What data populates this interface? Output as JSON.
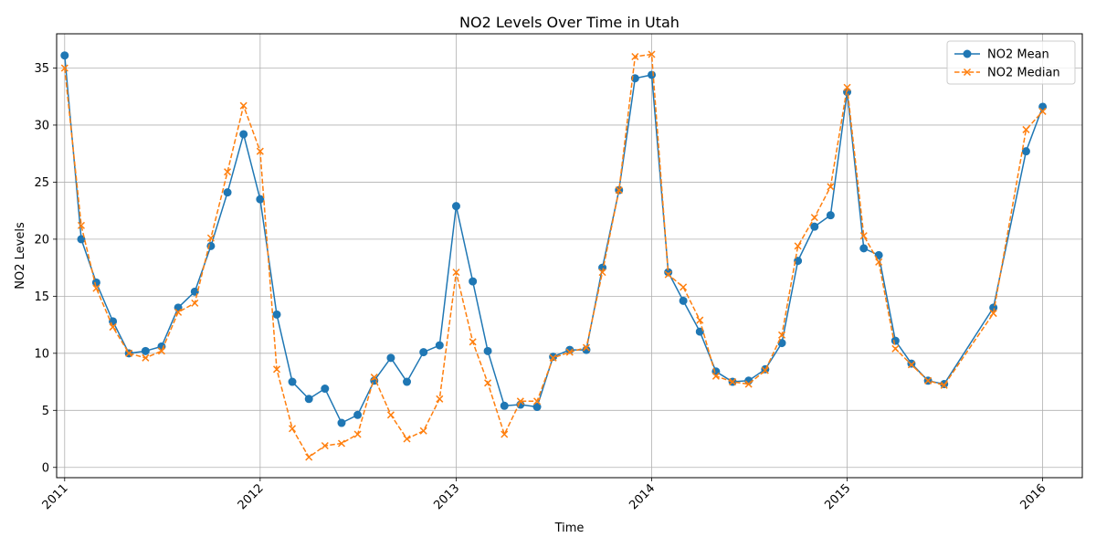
{
  "chart_data": {
    "type": "line",
    "title": "NO2 Levels Over Time in Utah",
    "xlabel": "Time",
    "ylabel": "NO2 Levels",
    "x_ticks": [
      "2011",
      "2012",
      "2013",
      "2014",
      "2015",
      "2016"
    ],
    "y_ticks": [
      "0",
      "5",
      "10",
      "15",
      "20",
      "25",
      "30",
      "35"
    ],
    "ylim": [
      -0.9,
      38
    ],
    "xlim": [
      "2010-12-17",
      "2016-03-15"
    ],
    "grid": true,
    "legend_position": "top-right",
    "series": [
      {
        "name": "NO2 Mean",
        "color": "#1f77b4",
        "style": "solid",
        "marker": "circle",
        "points": [
          [
            "2011-01-01",
            36.1
          ],
          [
            "2011-02-01",
            20.0
          ],
          [
            "2011-03-01",
            16.2
          ],
          [
            "2011-04-01",
            12.8
          ],
          [
            "2011-05-01",
            10.0
          ],
          [
            "2011-06-01",
            10.2
          ],
          [
            "2011-07-01",
            10.6
          ],
          [
            "2011-08-01",
            14.0
          ],
          [
            "2011-09-01",
            15.4
          ],
          [
            "2011-10-01",
            19.4
          ],
          [
            "2011-11-01",
            24.1
          ],
          [
            "2011-12-01",
            29.2
          ],
          [
            "2012-01-01",
            23.5
          ],
          [
            "2012-02-01",
            13.4
          ],
          [
            "2012-03-01",
            7.5
          ],
          [
            "2012-04-01",
            6.0
          ],
          [
            "2012-05-01",
            6.9
          ],
          [
            "2012-06-01",
            3.9
          ],
          [
            "2012-07-01",
            4.6
          ],
          [
            "2012-08-01",
            7.6
          ],
          [
            "2012-09-01",
            9.6
          ],
          [
            "2012-10-01",
            7.5
          ],
          [
            "2012-11-01",
            10.1
          ],
          [
            "2012-12-01",
            10.7
          ],
          [
            "2013-01-01",
            22.9
          ],
          [
            "2013-02-01",
            16.3
          ],
          [
            "2013-03-01",
            10.2
          ],
          [
            "2013-04-01",
            5.4
          ],
          [
            "2013-05-01",
            5.5
          ],
          [
            "2013-06-01",
            5.3
          ],
          [
            "2013-07-01",
            9.7
          ],
          [
            "2013-08-01",
            10.3
          ],
          [
            "2013-09-01",
            10.3
          ],
          [
            "2013-10-01",
            17.5
          ],
          [
            "2013-11-01",
            24.3
          ],
          [
            "2013-12-01",
            34.1
          ],
          [
            "2014-01-01",
            34.4
          ],
          [
            "2014-02-01",
            17.1
          ],
          [
            "2014-03-01",
            14.6
          ],
          [
            "2014-04-01",
            11.9
          ],
          [
            "2014-05-01",
            8.4
          ],
          [
            "2014-06-01",
            7.5
          ],
          [
            "2014-07-01",
            7.6
          ],
          [
            "2014-08-01",
            8.6
          ],
          [
            "2014-09-01",
            10.9
          ],
          [
            "2014-10-01",
            18.1
          ],
          [
            "2014-11-01",
            21.1
          ],
          [
            "2014-12-01",
            22.1
          ],
          [
            "2015-01-01",
            32.9
          ],
          [
            "2015-02-01",
            19.2
          ],
          [
            "2015-03-01",
            18.6
          ],
          [
            "2015-04-01",
            11.1
          ],
          [
            "2015-05-01",
            9.1
          ],
          [
            "2015-06-01",
            7.6
          ],
          [
            "2015-07-01",
            7.3
          ],
          [
            "2015-10-01",
            14.0
          ],
          [
            "2015-12-01",
            27.7
          ],
          [
            "2016-01-01",
            31.6
          ]
        ]
      },
      {
        "name": "NO2 Median",
        "color": "#ff7f0e",
        "style": "dashed",
        "marker": "x",
        "points": [
          [
            "2011-01-01",
            35.0
          ],
          [
            "2011-02-01",
            21.2
          ],
          [
            "2011-03-01",
            15.7
          ],
          [
            "2011-04-01",
            12.3
          ],
          [
            "2011-05-01",
            10.0
          ],
          [
            "2011-06-01",
            9.6
          ],
          [
            "2011-07-01",
            10.2
          ],
          [
            "2011-08-01",
            13.6
          ],
          [
            "2011-09-01",
            14.4
          ],
          [
            "2011-10-01",
            20.1
          ],
          [
            "2011-11-01",
            25.9
          ],
          [
            "2011-12-01",
            31.7
          ],
          [
            "2012-01-01",
            27.7
          ],
          [
            "2012-02-01",
            8.6
          ],
          [
            "2012-03-01",
            3.4
          ],
          [
            "2012-04-01",
            0.9
          ],
          [
            "2012-05-01",
            1.9
          ],
          [
            "2012-06-01",
            2.1
          ],
          [
            "2012-07-01",
            2.9
          ],
          [
            "2012-08-01",
            7.9
          ],
          [
            "2012-09-01",
            4.6
          ],
          [
            "2012-10-01",
            2.5
          ],
          [
            "2012-11-01",
            3.2
          ],
          [
            "2012-12-01",
            6.0
          ],
          [
            "2013-01-01",
            17.1
          ],
          [
            "2013-02-01",
            11.0
          ],
          [
            "2013-03-01",
            7.4
          ],
          [
            "2013-04-01",
            2.9
          ],
          [
            "2013-05-01",
            5.8
          ],
          [
            "2013-06-01",
            5.8
          ],
          [
            "2013-07-01",
            9.6
          ],
          [
            "2013-08-01",
            10.1
          ],
          [
            "2013-09-01",
            10.5
          ],
          [
            "2013-10-01",
            17.1
          ],
          [
            "2013-11-01",
            24.3
          ],
          [
            "2013-12-01",
            36.0
          ],
          [
            "2014-01-01",
            36.2
          ],
          [
            "2014-02-01",
            16.9
          ],
          [
            "2014-03-01",
            15.8
          ],
          [
            "2014-04-01",
            12.9
          ],
          [
            "2014-05-01",
            8.0
          ],
          [
            "2014-06-01",
            7.5
          ],
          [
            "2014-07-01",
            7.3
          ],
          [
            "2014-08-01",
            8.5
          ],
          [
            "2014-09-01",
            11.6
          ],
          [
            "2014-10-01",
            19.4
          ],
          [
            "2014-11-01",
            21.9
          ],
          [
            "2014-12-01",
            24.6
          ],
          [
            "2015-01-01",
            33.3
          ],
          [
            "2015-02-01",
            20.3
          ],
          [
            "2015-03-01",
            18.0
          ],
          [
            "2015-04-01",
            10.4
          ],
          [
            "2015-05-01",
            9.0
          ],
          [
            "2015-06-01",
            7.6
          ],
          [
            "2015-07-01",
            7.2
          ],
          [
            "2015-10-01",
            13.5
          ],
          [
            "2015-12-01",
            29.6
          ],
          [
            "2016-01-01",
            31.2
          ]
        ]
      }
    ]
  }
}
